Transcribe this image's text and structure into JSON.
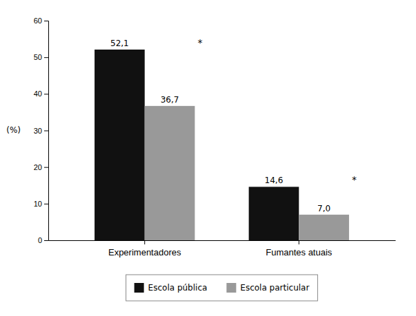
{
  "chart_data": {
    "type": "bar",
    "ylabel": "(%)",
    "categories": [
      "Experimentadores",
      "Fumantes atuais"
    ],
    "series": [
      {
        "name": "Escola pública",
        "color": "#111111",
        "values": [
          52.1,
          14.6
        ],
        "value_labels": [
          "52,1",
          "14,6"
        ]
      },
      {
        "name": "Escola particular",
        "color": "#999999",
        "values": [
          36.7,
          7.0
        ],
        "value_labels": [
          "36,7",
          "7,0"
        ]
      }
    ],
    "ylim": [
      0,
      60
    ],
    "yticks": [
      0,
      10,
      20,
      30,
      40,
      50,
      60
    ],
    "grid": false,
    "legend": "bottom",
    "data_labels": true,
    "annotations": [
      {
        "text": "*",
        "category": "Experimentadores",
        "series": "Escola pública"
      },
      {
        "text": "*",
        "category": "Fumantes atuais",
        "series": "Escola pública"
      }
    ]
  }
}
